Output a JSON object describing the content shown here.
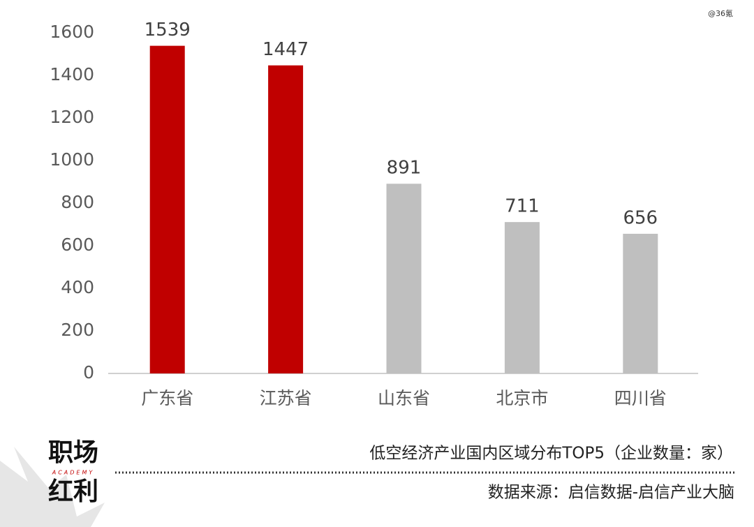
{
  "watermark": "@36氪",
  "logo": {
    "line1": "职场",
    "tag": "ACADEMY",
    "line2": "红利"
  },
  "chart_data": {
    "type": "bar",
    "title": "低空经济产业国内区域分布TOP5（企业数量：家）",
    "source": "数据来源：启信数据-启信产业大脑",
    "categories": [
      "广东省",
      "江苏省",
      "山东省",
      "北京市",
      "四川省"
    ],
    "values": [
      1539,
      1447,
      891,
      711,
      656
    ],
    "colors": [
      "#c00000",
      "#c00000",
      "#bfbfbf",
      "#bfbfbf",
      "#bfbfbf"
    ],
    "ylim": [
      0,
      1600
    ],
    "yticks": [
      0,
      200,
      400,
      600,
      800,
      1000,
      1200,
      1400,
      1600
    ],
    "grid": false
  }
}
